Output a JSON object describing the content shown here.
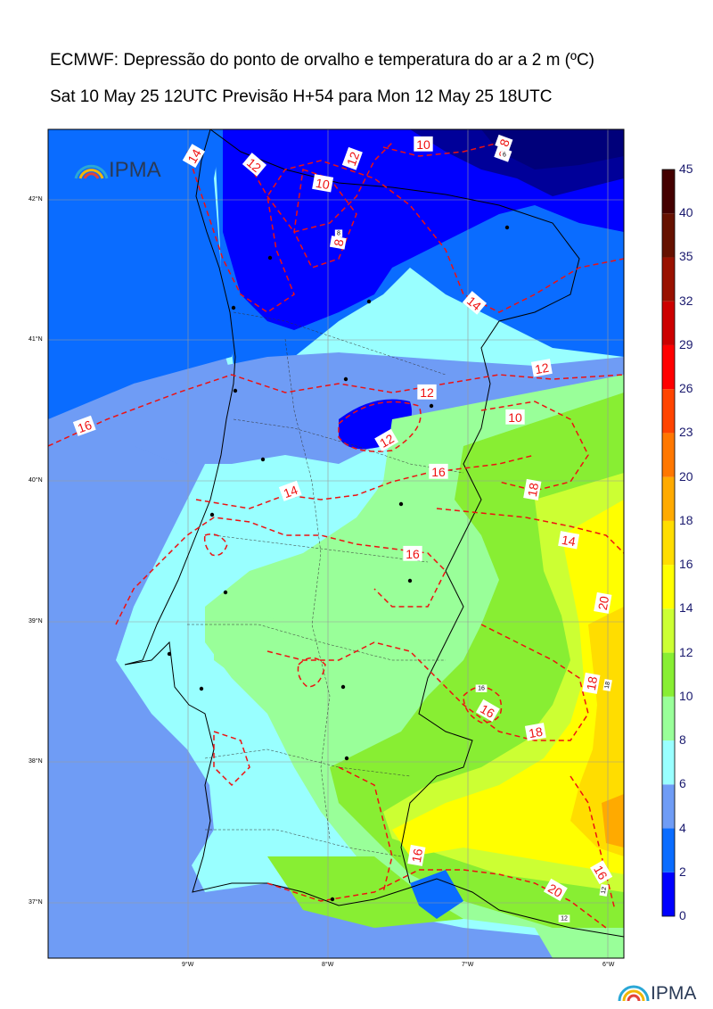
{
  "title_line1": "ECMWF: Depressão do ponto de orvalho e temperatura do ar a 2 m (ºC)",
  "title_line2": "Sat 10 May 25 12UTC Previsão H+54 para Mon 12 May 25 18UTC",
  "logo_text": "IPMA",
  "colorbar": {
    "levels": [
      "0",
      "2",
      "4",
      "6",
      "8",
      "10",
      "12",
      "14",
      "16",
      "18",
      "20",
      "23",
      "26",
      "29",
      "32",
      "35",
      "40",
      "45"
    ],
    "colors": [
      "#0000ff",
      "#0a6cff",
      "#6f9cf5",
      "#99ffff",
      "#99ff99",
      "#88ee33",
      "#ccff33",
      "#ffff00",
      "#ffdd00",
      "#ffaa00",
      "#ff7700",
      "#ff4400",
      "#ff0000",
      "#cc0000",
      "#991100",
      "#661100",
      "#440000"
    ]
  },
  "lat_labels": [
    "42°N",
    "41°N",
    "40°N",
    "39°N",
    "38°N",
    "37°N"
  ],
  "lon_labels": [
    "9°W",
    "8°W",
    "7°W",
    "6°W"
  ],
  "contour_labels": [
    "14",
    "12",
    "12",
    "10",
    "10",
    "8",
    "8",
    "8",
    "12",
    "14",
    "12",
    "12",
    "16",
    "14",
    "10",
    "16",
    "18",
    "14",
    "16",
    "18",
    "16",
    "18",
    "16",
    "16",
    "20",
    "20",
    "18",
    "12",
    "16",
    "12",
    "8",
    "6"
  ]
}
